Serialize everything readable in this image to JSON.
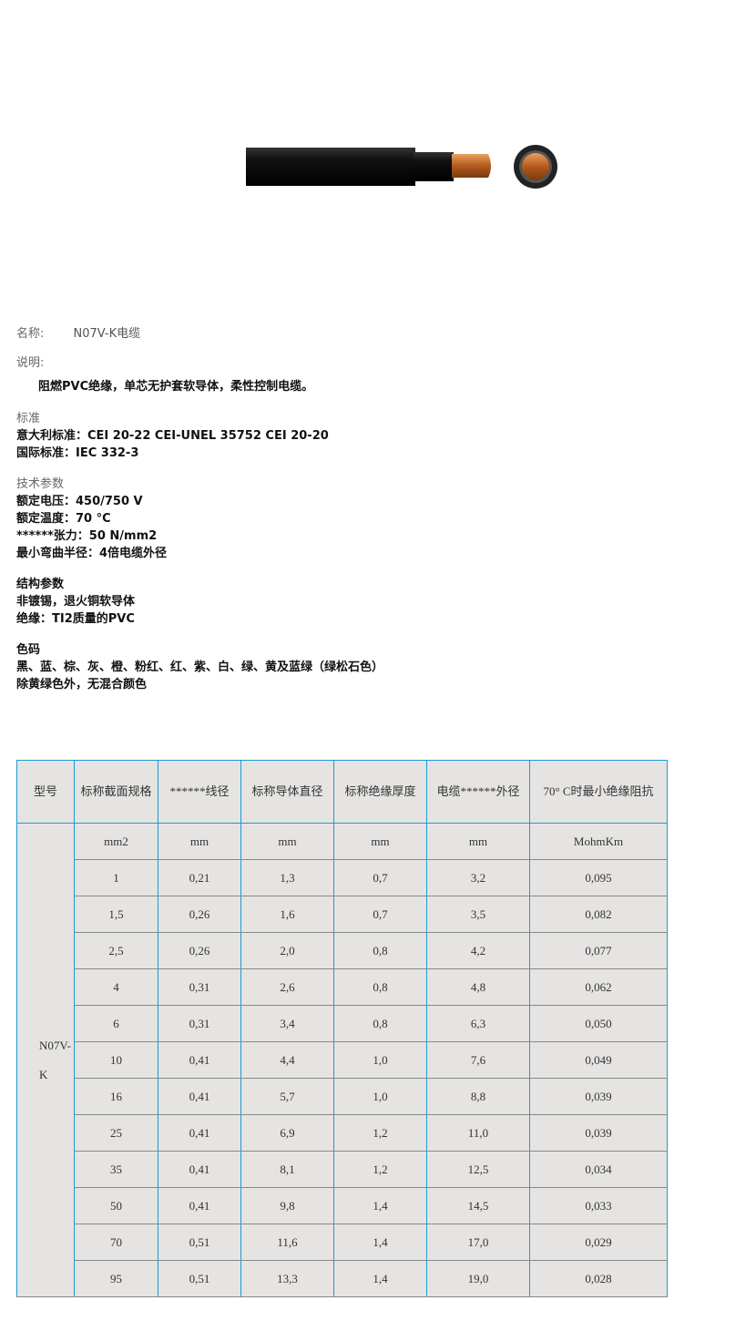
{
  "product": {
    "name_label": "名称:",
    "name": "N07V-K电缆",
    "desc_label": "说明:",
    "desc": "阻燃PVC绝缘，单芯无护套软导体，柔性控制电缆。"
  },
  "standards": {
    "title": "标准",
    "lines": [
      "意大利标准：CEI 20-22 CEI-UNEL 35752 CEI 20-20",
      "国际标准：IEC 332-3"
    ]
  },
  "tech": {
    "title": "技术参数",
    "lines": [
      "额定电压：450/750 V",
      "额定温度：70 °C",
      "******张力：50 N/mm2",
      "最小弯曲半径：4倍电缆外径"
    ]
  },
  "structure": {
    "title": "结构参数",
    "lines": [
      "非镀锡，退火铜软导体",
      "绝缘：TI2质量的PVC"
    ]
  },
  "colors": {
    "title": "色码",
    "lines": [
      "黑、蓝、棕、灰、橙、粉红、红、紫、白、绿、黄及蓝绿（绿松石色）",
      "除黄绿色外，无混合颜色"
    ]
  },
  "table": {
    "headers": [
      "型号",
      "标称截面规格",
      "******线径",
      "标称导体直径",
      "标称绝缘厚度",
      "电缆******外径",
      "70° C时最小绝缘阻抗"
    ],
    "model": "N07V-K",
    "units": [
      "mm2",
      "mm",
      "mm",
      "mm",
      "mm",
      "MohmKm"
    ],
    "rows": [
      [
        "1",
        "0,21",
        "1,3",
        "0,7",
        "3,2",
        "0,095"
      ],
      [
        "1,5",
        "0,26",
        "1,6",
        "0,7",
        "3,5",
        "0,082"
      ],
      [
        "2,5",
        "0,26",
        "2,0",
        "0,8",
        "4,2",
        "0,077"
      ],
      [
        "4",
        "0,31",
        "2,6",
        "0,8",
        "4,8",
        "0,062"
      ],
      [
        "6",
        "0,31",
        "3,4",
        "0,8",
        "6,3",
        "0,050"
      ],
      [
        "10",
        "0,41",
        "4,4",
        "1,0",
        "7,6",
        "0,049"
      ],
      [
        "16",
        "0,41",
        "5,7",
        "1,0",
        "8,8",
        "0,039"
      ],
      [
        "25",
        "0,41",
        "6,9",
        "1,2",
        "11,0",
        "0,039"
      ],
      [
        "35",
        "0,41",
        "8,1",
        "1,2",
        "12,5",
        "0,034"
      ],
      [
        "50",
        "0,41",
        "9,8",
        "1,4",
        "14,5",
        "0,033"
      ],
      [
        "70",
        "0,51",
        "11,6",
        "1,4",
        "17,0",
        "0,029"
      ],
      [
        "95",
        "0,51",
        "13,3",
        "1,4",
        "19,0",
        "0,028"
      ]
    ]
  }
}
